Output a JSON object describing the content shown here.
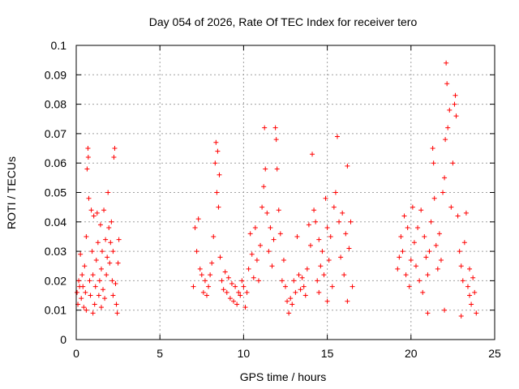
{
  "chart_data": {
    "type": "scatter",
    "title": "Day 054 of 2026, Rate Of TEC Index for receiver tero",
    "xlabel": "GPS time / hours",
    "ylabel": "ROTI / TECUs",
    "xlim": [
      0,
      25
    ],
    "ylim": [
      0,
      0.1
    ],
    "xticks": [
      "0",
      "5",
      "10",
      "15",
      "20",
      "25"
    ],
    "yticks": [
      "0",
      "0.01",
      "0.02",
      "0.03",
      "0.04",
      "0.05",
      "0.06",
      "0.07",
      "0.08",
      "0.09",
      "0.1"
    ],
    "grid": true,
    "marker": "+",
    "color": "#ff0000",
    "series": [
      {
        "points": [
          [
            0.05,
            0.016
          ],
          [
            0.1,
            0.012
          ],
          [
            0.15,
            0.02
          ],
          [
            0.2,
            0.018
          ],
          [
            0.25,
            0.029
          ],
          [
            0.3,
            0.014
          ],
          [
            0.35,
            0.022
          ],
          [
            0.4,
            0.018
          ],
          [
            0.45,
            0.011
          ],
          [
            0.5,
            0.025
          ],
          [
            0.55,
            0.016
          ],
          [
            0.6,
            0.035
          ],
          [
            0.65,
            0.058
          ],
          [
            0.7,
            0.065
          ],
          [
            0.72,
            0.062
          ],
          [
            0.75,
            0.048
          ],
          [
            0.8,
            0.02
          ],
          [
            0.85,
            0.015
          ],
          [
            0.9,
            0.044
          ],
          [
            0.95,
            0.03
          ],
          [
            1.0,
            0.022
          ],
          [
            1.05,
            0.042
          ],
          [
            1.1,
            0.012
          ],
          [
            1.15,
            0.018
          ],
          [
            1.2,
            0.027
          ],
          [
            1.25,
            0.043
          ],
          [
            1.3,
            0.033
          ],
          [
            1.35,
            0.015
          ],
          [
            1.4,
            0.02
          ],
          [
            1.45,
            0.039
          ],
          [
            1.5,
            0.024
          ],
          [
            1.55,
            0.03
          ],
          [
            1.6,
            0.017
          ],
          [
            1.65,
            0.044
          ],
          [
            1.7,
            0.014
          ],
          [
            1.75,
            0.034
          ],
          [
            1.8,
            0.022
          ],
          [
            1.85,
            0.028
          ],
          [
            1.9,
            0.05
          ],
          [
            1.95,
            0.038
          ],
          [
            2.0,
            0.026
          ],
          [
            2.05,
            0.033
          ],
          [
            2.1,
            0.04
          ],
          [
            2.15,
            0.02
          ],
          [
            2.2,
            0.03
          ],
          [
            2.25,
            0.062
          ],
          [
            2.3,
            0.065
          ],
          [
            2.35,
            0.019
          ],
          [
            2.4,
            0.012
          ],
          [
            2.45,
            0.009
          ],
          [
            2.5,
            0.026
          ],
          [
            2.55,
            0.034
          ],
          [
            0.6,
            0.01
          ],
          [
            1.0,
            0.009
          ],
          [
            1.5,
            0.011
          ],
          [
            2.2,
            0.015
          ],
          [
            7.0,
            0.018
          ],
          [
            7.1,
            0.038
          ],
          [
            7.2,
            0.03
          ],
          [
            7.3,
            0.041
          ],
          [
            7.4,
            0.024
          ],
          [
            7.5,
            0.022
          ],
          [
            7.6,
            0.016
          ],
          [
            7.7,
            0.02
          ],
          [
            7.8,
            0.015
          ],
          [
            7.9,
            0.018
          ],
          [
            8.0,
            0.022
          ],
          [
            8.1,
            0.026
          ],
          [
            8.2,
            0.035
          ],
          [
            8.3,
            0.06
          ],
          [
            8.35,
            0.067
          ],
          [
            8.4,
            0.05
          ],
          [
            8.45,
            0.064
          ],
          [
            8.5,
            0.045
          ],
          [
            8.55,
            0.056
          ],
          [
            8.6,
            0.028
          ],
          [
            8.7,
            0.02
          ],
          [
            8.8,
            0.017
          ],
          [
            8.9,
            0.023
          ],
          [
            9.0,
            0.016
          ],
          [
            9.1,
            0.021
          ],
          [
            9.2,
            0.014
          ],
          [
            9.3,
            0.019
          ],
          [
            9.4,
            0.013
          ],
          [
            9.5,
            0.018
          ],
          [
            9.6,
            0.012
          ],
          [
            9.7,
            0.016
          ],
          [
            9.8,
            0.015
          ],
          [
            9.9,
            0.02
          ],
          [
            10.0,
            0.018
          ],
          [
            10.1,
            0.011
          ],
          [
            10.2,
            0.016
          ],
          [
            10.3,
            0.024
          ],
          [
            10.4,
            0.036
          ],
          [
            10.5,
            0.029
          ],
          [
            10.6,
            0.021
          ],
          [
            10.7,
            0.038
          ],
          [
            10.8,
            0.027
          ],
          [
            10.9,
            0.02
          ],
          [
            11.0,
            0.032
          ],
          [
            11.1,
            0.045
          ],
          [
            11.2,
            0.052
          ],
          [
            11.25,
            0.072
          ],
          [
            11.3,
            0.058
          ],
          [
            11.4,
            0.043
          ],
          [
            11.5,
            0.03
          ],
          [
            11.6,
            0.038
          ],
          [
            11.7,
            0.025
          ],
          [
            11.8,
            0.034
          ],
          [
            11.9,
            0.072
          ],
          [
            11.95,
            0.068
          ],
          [
            12.0,
            0.058
          ],
          [
            12.1,
            0.044
          ],
          [
            12.2,
            0.036
          ],
          [
            12.3,
            0.02
          ],
          [
            12.4,
            0.027
          ],
          [
            12.5,
            0.018
          ],
          [
            12.6,
            0.013
          ],
          [
            12.7,
            0.009
          ],
          [
            12.8,
            0.014
          ],
          [
            12.9,
            0.012
          ],
          [
            13.0,
            0.02
          ],
          [
            13.1,
            0.016
          ],
          [
            13.2,
            0.035
          ],
          [
            13.3,
            0.022
          ],
          [
            13.4,
            0.017
          ],
          [
            13.5,
            0.021
          ],
          [
            13.6,
            0.018
          ],
          [
            13.7,
            0.015
          ],
          [
            13.8,
            0.024
          ],
          [
            13.9,
            0.039
          ],
          [
            14.0,
            0.032
          ],
          [
            14.1,
            0.063
          ],
          [
            14.2,
            0.044
          ],
          [
            14.3,
            0.04
          ],
          [
            14.4,
            0.02
          ],
          [
            14.5,
            0.034
          ],
          [
            14.6,
            0.025
          ],
          [
            14.7,
            0.03
          ],
          [
            14.8,
            0.022
          ],
          [
            14.9,
            0.048
          ],
          [
            15.0,
            0.038
          ],
          [
            15.1,
            0.027
          ],
          [
            15.2,
            0.035
          ],
          [
            15.3,
            0.018
          ],
          [
            15.4,
            0.045
          ],
          [
            15.5,
            0.05
          ],
          [
            15.6,
            0.069
          ],
          [
            15.7,
            0.04
          ],
          [
            15.8,
            0.028
          ],
          [
            15.9,
            0.043
          ],
          [
            16.0,
            0.022
          ],
          [
            16.1,
            0.036
          ],
          [
            16.2,
            0.059
          ],
          [
            16.3,
            0.031
          ],
          [
            16.4,
            0.04
          ],
          [
            16.5,
            0.018
          ],
          [
            15.0,
            0.013
          ],
          [
            14.5,
            0.016
          ],
          [
            16.2,
            0.013
          ],
          [
            19.2,
            0.024
          ],
          [
            19.3,
            0.028
          ],
          [
            19.4,
            0.035
          ],
          [
            19.5,
            0.03
          ],
          [
            19.6,
            0.042
          ],
          [
            19.7,
            0.022
          ],
          [
            19.8,
            0.038
          ],
          [
            19.9,
            0.018
          ],
          [
            20.0,
            0.027
          ],
          [
            20.1,
            0.045
          ],
          [
            20.2,
            0.033
          ],
          [
            20.3,
            0.025
          ],
          [
            20.4,
            0.038
          ],
          [
            20.5,
            0.02
          ],
          [
            20.6,
            0.044
          ],
          [
            20.7,
            0.016
          ],
          [
            20.8,
            0.035
          ],
          [
            20.9,
            0.028
          ],
          [
            21.0,
            0.022
          ],
          [
            21.1,
            0.03
          ],
          [
            21.2,
            0.04
          ],
          [
            21.3,
            0.065
          ],
          [
            21.35,
            0.06
          ],
          [
            21.4,
            0.048
          ],
          [
            21.5,
            0.032
          ],
          [
            21.6,
            0.024
          ],
          [
            21.7,
            0.036
          ],
          [
            21.8,
            0.027
          ],
          [
            21.9,
            0.05
          ],
          [
            22.0,
            0.055
          ],
          [
            22.05,
            0.068
          ],
          [
            22.1,
            0.094
          ],
          [
            22.15,
            0.087
          ],
          [
            22.2,
            0.072
          ],
          [
            22.3,
            0.078
          ],
          [
            22.4,
            0.045
          ],
          [
            22.5,
            0.06
          ],
          [
            22.6,
            0.08
          ],
          [
            22.65,
            0.083
          ],
          [
            22.7,
            0.076
          ],
          [
            22.8,
            0.042
          ],
          [
            22.9,
            0.03
          ],
          [
            23.0,
            0.025
          ],
          [
            23.1,
            0.02
          ],
          [
            23.2,
            0.033
          ],
          [
            23.3,
            0.043
          ],
          [
            23.4,
            0.018
          ],
          [
            23.5,
            0.015
          ],
          [
            23.6,
            0.012
          ],
          [
            23.7,
            0.021
          ],
          [
            23.8,
            0.016
          ],
          [
            23.9,
            0.009
          ],
          [
            21.0,
            0.009
          ],
          [
            22.0,
            0.01
          ],
          [
            23.0,
            0.008
          ],
          [
            23.5,
            0.024
          ]
        ]
      }
    ]
  }
}
